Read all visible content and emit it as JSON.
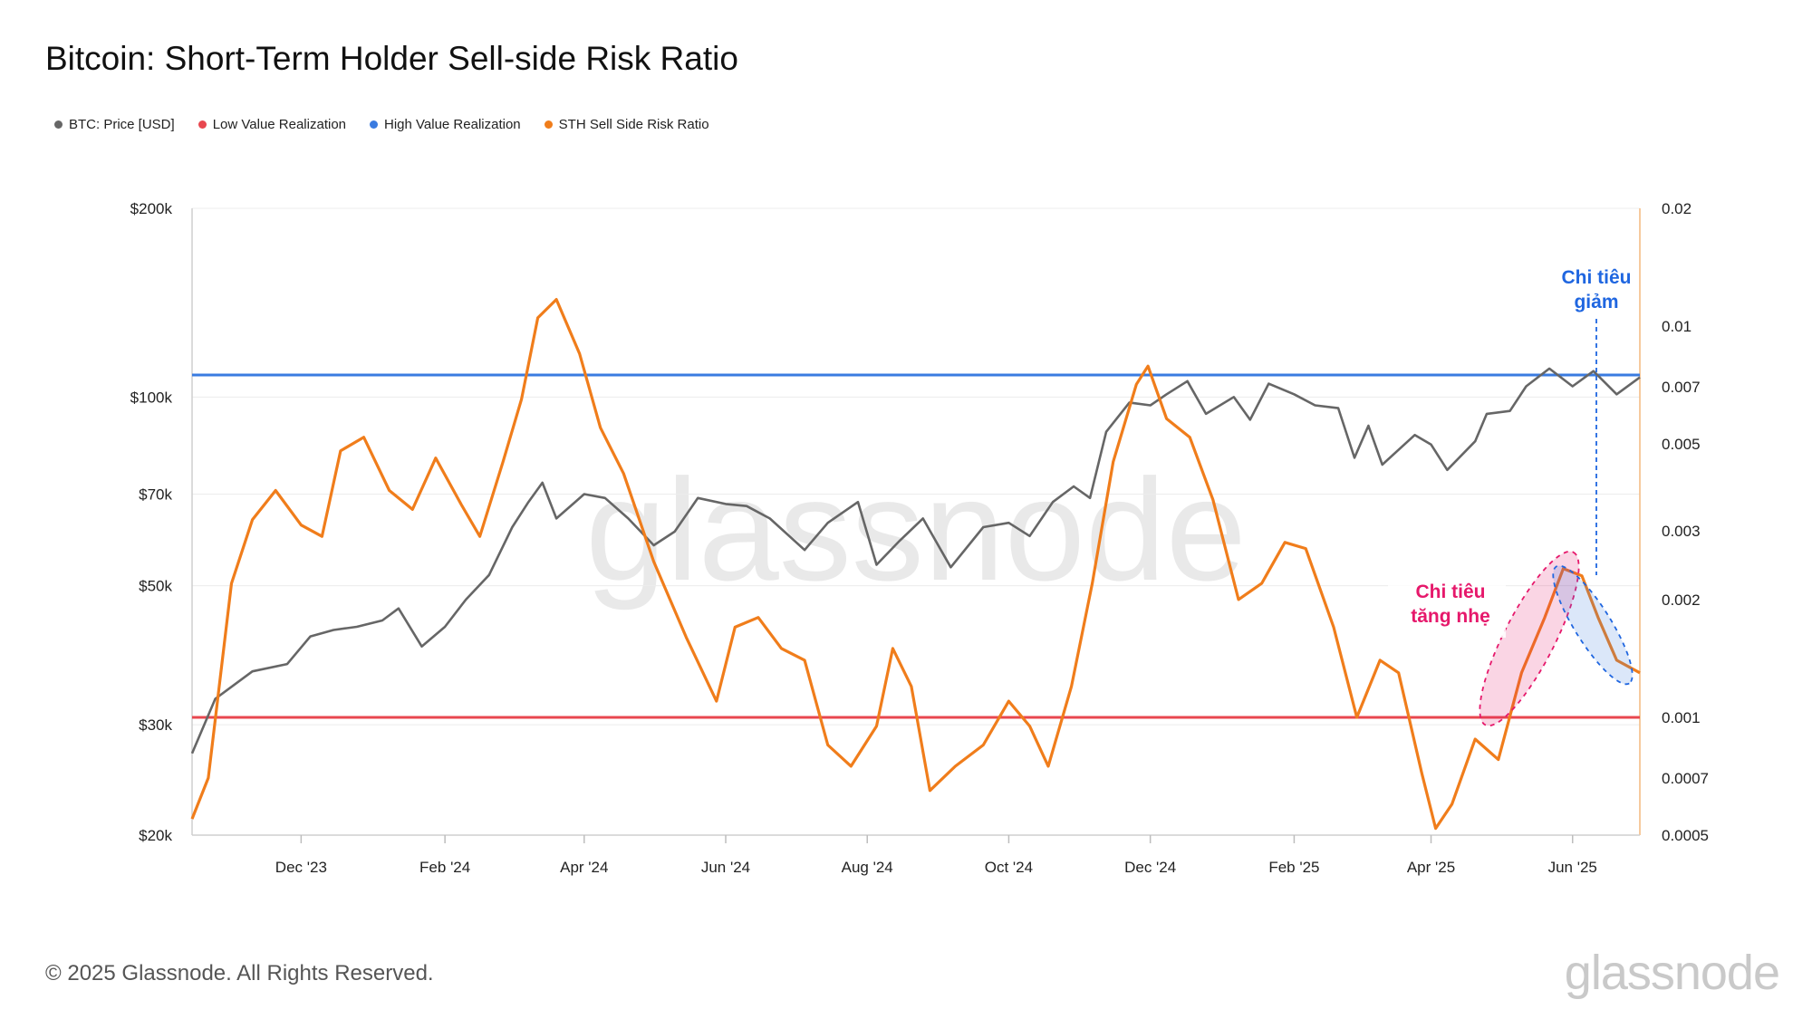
{
  "title": "Bitcoin: Short-Term Holder Sell-side Risk Ratio",
  "footer": "© 2025 Glassnode. All Rights Reserved.",
  "brand": "glassnode",
  "watermark": "glassnode",
  "legend": [
    {
      "label": "BTC: Price [USD]",
      "color": "#666666"
    },
    {
      "label": "Low Value Realization",
      "color": "#e8474f"
    },
    {
      "label": "High Value Realization",
      "color": "#3a7be0"
    },
    {
      "label": "STH Sell Side Risk Ratio",
      "color": "#f07d1b"
    }
  ],
  "annotations": {
    "decrease": {
      "line1": "Chi tiêu",
      "line2": "giảm",
      "color": "#1f66e0"
    },
    "increase": {
      "line1": "Chi tiêu",
      "line2": "tăng nhẹ",
      "color": "#e6186b"
    }
  },
  "chart_data": {
    "type": "line",
    "title": "Bitcoin: Short-Term Holder Sell-side Risk Ratio",
    "x_ticks": [
      "Dec '23",
      "Feb '24",
      "Apr '24",
      "Jun '24",
      "Aug '24",
      "Oct '24",
      "Dec '24",
      "Feb '25",
      "Apr '25",
      "Jun '25"
    ],
    "x_range": [
      "2023-10-15",
      "2025-06-30"
    ],
    "y_left": {
      "scale": "log",
      "range": [
        20000,
        200000
      ],
      "ticks": [
        "$20k",
        "$30k",
        "$50k",
        "$70k",
        "$100k",
        "$200k"
      ],
      "tick_values": [
        20000,
        30000,
        50000,
        70000,
        100000,
        200000
      ]
    },
    "y_right": {
      "scale": "log",
      "range": [
        0.0005,
        0.02
      ],
      "ticks": [
        "0.0005",
        "0.0007",
        "0.001",
        "0.002",
        "0.003",
        "0.005",
        "0.007",
        "0.01",
        "0.02"
      ],
      "tick_values": [
        0.0005,
        0.0007,
        0.001,
        0.002,
        0.003,
        0.005,
        0.007,
        0.01,
        0.02
      ]
    },
    "thresholds": {
      "low_value_realization": 0.001,
      "high_value_realization": 0.0075
    },
    "series": [
      {
        "name": "BTC: Price [USD]",
        "axis": "left",
        "color": "#666666",
        "points": [
          [
            "2023-10-15",
            27000
          ],
          [
            "2023-10-25",
            33000
          ],
          [
            "2023-11-10",
            36500
          ],
          [
            "2023-11-25",
            37500
          ],
          [
            "2023-12-05",
            41500
          ],
          [
            "2023-12-15",
            42500
          ],
          [
            "2023-12-25",
            43000
          ],
          [
            "2024-01-05",
            44000
          ],
          [
            "2024-01-12",
            46000
          ],
          [
            "2024-01-22",
            40000
          ],
          [
            "2024-02-01",
            43000
          ],
          [
            "2024-02-10",
            47500
          ],
          [
            "2024-02-20",
            52000
          ],
          [
            "2024-03-01",
            62000
          ],
          [
            "2024-03-08",
            68000
          ],
          [
            "2024-03-14",
            73000
          ],
          [
            "2024-03-20",
            64000
          ],
          [
            "2024-04-01",
            70000
          ],
          [
            "2024-04-10",
            69000
          ],
          [
            "2024-04-20",
            64000
          ],
          [
            "2024-05-01",
            58000
          ],
          [
            "2024-05-10",
            61000
          ],
          [
            "2024-05-20",
            69000
          ],
          [
            "2024-06-01",
            67500
          ],
          [
            "2024-06-10",
            67000
          ],
          [
            "2024-06-20",
            64000
          ],
          [
            "2024-07-05",
            57000
          ],
          [
            "2024-07-15",
            63000
          ],
          [
            "2024-07-28",
            68000
          ],
          [
            "2024-08-05",
            54000
          ],
          [
            "2024-08-15",
            59000
          ],
          [
            "2024-08-25",
            64000
          ],
          [
            "2024-09-06",
            53500
          ],
          [
            "2024-09-20",
            62000
          ],
          [
            "2024-10-01",
            63000
          ],
          [
            "2024-10-10",
            60000
          ],
          [
            "2024-10-20",
            68000
          ],
          [
            "2024-10-29",
            72000
          ],
          [
            "2024-11-05",
            69000
          ],
          [
            "2024-11-12",
            88000
          ],
          [
            "2024-11-22",
            98000
          ],
          [
            "2024-12-01",
            97000
          ],
          [
            "2024-12-08",
            101000
          ],
          [
            "2024-12-17",
            106000
          ],
          [
            "2024-12-25",
            94000
          ],
          [
            "2025-01-06",
            100000
          ],
          [
            "2025-01-13",
            92000
          ],
          [
            "2025-01-21",
            105000
          ],
          [
            "2025-02-01",
            101000
          ],
          [
            "2025-02-10",
            97000
          ],
          [
            "2025-02-20",
            96000
          ],
          [
            "2025-02-27",
            80000
          ],
          [
            "2025-03-05",
            90000
          ],
          [
            "2025-03-11",
            78000
          ],
          [
            "2025-03-25",
            87000
          ],
          [
            "2025-04-01",
            84000
          ],
          [
            "2025-04-08",
            76500
          ],
          [
            "2025-04-20",
            85000
          ],
          [
            "2025-04-25",
            94000
          ],
          [
            "2025-05-05",
            95000
          ],
          [
            "2025-05-12",
            104000
          ],
          [
            "2025-05-22",
            111000
          ],
          [
            "2025-06-01",
            104000
          ],
          [
            "2025-06-10",
            110000
          ],
          [
            "2025-06-20",
            101000
          ],
          [
            "2025-06-30",
            107500
          ]
        ]
      },
      {
        "name": "STH Sell Side Risk Ratio",
        "axis": "right",
        "color": "#f07d1b",
        "points": [
          [
            "2023-10-15",
            0.00055
          ],
          [
            "2023-10-22",
            0.0007
          ],
          [
            "2023-11-01",
            0.0022
          ],
          [
            "2023-11-10",
            0.0032
          ],
          [
            "2023-11-20",
            0.0038
          ],
          [
            "2023-12-01",
            0.0031
          ],
          [
            "2023-12-10",
            0.0029
          ],
          [
            "2023-12-18",
            0.0048
          ],
          [
            "2023-12-28",
            0.0052
          ],
          [
            "2024-01-08",
            0.0038
          ],
          [
            "2024-01-18",
            0.0034
          ],
          [
            "2024-01-28",
            0.0046
          ],
          [
            "2024-02-08",
            0.0035
          ],
          [
            "2024-02-16",
            0.0029
          ],
          [
            "2024-02-26",
            0.0045
          ],
          [
            "2024-03-05",
            0.0065
          ],
          [
            "2024-03-12",
            0.0105
          ],
          [
            "2024-03-20",
            0.0117
          ],
          [
            "2024-03-30",
            0.0085
          ],
          [
            "2024-04-08",
            0.0055
          ],
          [
            "2024-04-18",
            0.0042
          ],
          [
            "2024-05-01",
            0.0025
          ],
          [
            "2024-05-15",
            0.0016
          ],
          [
            "2024-05-28",
            0.0011
          ],
          [
            "2024-06-05",
            0.0017
          ],
          [
            "2024-06-15",
            0.0018
          ],
          [
            "2024-06-25",
            0.0015
          ],
          [
            "2024-07-05",
            0.0014
          ],
          [
            "2024-07-15",
            0.00085
          ],
          [
            "2024-07-25",
            0.00075
          ],
          [
            "2024-08-05",
            0.00095
          ],
          [
            "2024-08-12",
            0.0015
          ],
          [
            "2024-08-20",
            0.0012
          ],
          [
            "2024-08-28",
            0.00065
          ],
          [
            "2024-09-08",
            0.00075
          ],
          [
            "2024-09-20",
            0.00085
          ],
          [
            "2024-10-01",
            0.0011
          ],
          [
            "2024-10-10",
            0.00095
          ],
          [
            "2024-10-18",
            0.00075
          ],
          [
            "2024-10-28",
            0.0012
          ],
          [
            "2024-11-06",
            0.0022
          ],
          [
            "2024-11-15",
            0.0045
          ],
          [
            "2024-11-25",
            0.0071
          ],
          [
            "2024-11-30",
            0.0079
          ],
          [
            "2024-12-08",
            0.0058
          ],
          [
            "2024-12-18",
            0.0052
          ],
          [
            "2024-12-28",
            0.0036
          ],
          [
            "2025-01-08",
            0.002
          ],
          [
            "2025-01-18",
            0.0022
          ],
          [
            "2025-01-28",
            0.0028
          ],
          [
            "2025-02-06",
            0.0027
          ],
          [
            "2025-02-18",
            0.0017
          ],
          [
            "2025-02-28",
            0.001
          ],
          [
            "2025-03-10",
            0.0014
          ],
          [
            "2025-03-18",
            0.0013
          ],
          [
            "2025-03-28",
            0.00072
          ],
          [
            "2025-04-03",
            0.00052
          ],
          [
            "2025-04-10",
            0.0006
          ],
          [
            "2025-04-20",
            0.00088
          ],
          [
            "2025-04-30",
            0.00078
          ],
          [
            "2025-05-10",
            0.0013
          ],
          [
            "2025-05-20",
            0.0018
          ],
          [
            "2025-05-28",
            0.0024
          ],
          [
            "2025-06-05",
            0.0023
          ],
          [
            "2025-06-12",
            0.0018
          ],
          [
            "2025-06-20",
            0.0014
          ],
          [
            "2025-06-30",
            0.0013
          ]
        ]
      }
    ]
  }
}
